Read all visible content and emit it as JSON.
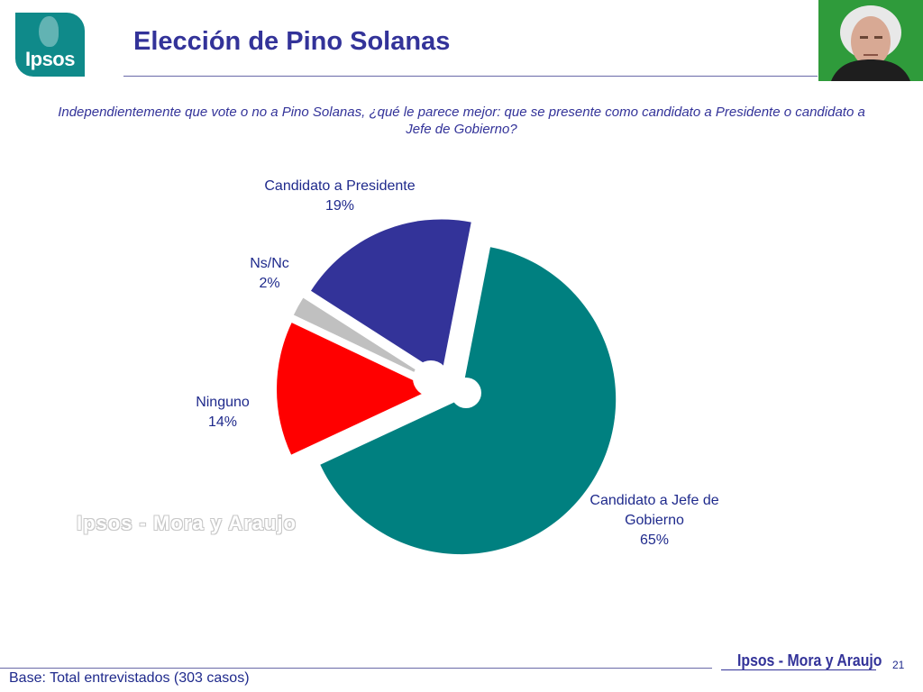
{
  "header": {
    "logo_text": "Ipsos",
    "title": "Elección de Pino Solanas"
  },
  "question": "Independientemente que vote o no a Pino Solanas, ¿qué le parece mejor: que se presente como candidato a Presidente o candidato a Jefe de Gobierno?",
  "chart_data": {
    "type": "pie",
    "title": "",
    "slices": [
      {
        "label": "Candidato a Jefe de Gobierno",
        "value": 65,
        "display": "65%",
        "color": "#008080"
      },
      {
        "label": "Ninguno",
        "value": 14,
        "display": "14%",
        "color": "#ff0000"
      },
      {
        "label": "Ns/Nc",
        "value": 2,
        "display": "2%",
        "color": "#c0c0c0"
      },
      {
        "label": "Candidato a Presidente",
        "value": 19,
        "display": "19%",
        "color": "#333399"
      }
    ],
    "legend": "none",
    "exploded": true
  },
  "watermark": "Ipsos - Mora y Araujo",
  "footer": {
    "base": "Base: Total entrevistados (303 casos)",
    "brand": "Ipsos - Mora y Araujo",
    "page_number": "21"
  }
}
